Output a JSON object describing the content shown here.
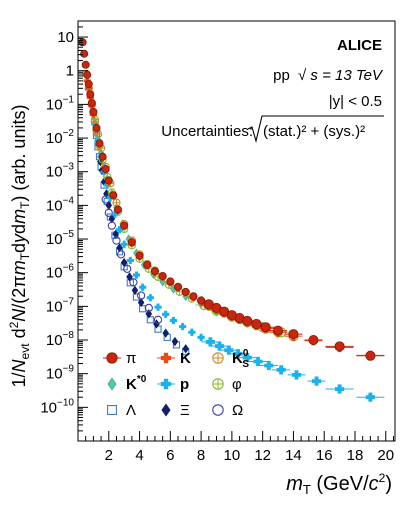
{
  "chart_data": {
    "type": "scatter",
    "title": "",
    "xlabel": "m_T (GeV/c^2)",
    "ylabel": "1/N_evt d^2N/(2πm_T dy dm_T) (arb. units)",
    "xlim": [
      0,
      20.6
    ],
    "ylim": [
      1e-11,
      30
    ],
    "yscale": "log",
    "grid": false,
    "legend_position": "bottom-left",
    "x_ticks": [
      2,
      4,
      6,
      8,
      10,
      12,
      14,
      16,
      18,
      20
    ],
    "y_ticks": [
      {
        "v": 10,
        "m": "10",
        "e": ""
      },
      {
        "v": 1,
        "m": "1",
        "e": ""
      },
      {
        "v": 0.1,
        "m": "10",
        "e": "−1"
      },
      {
        "v": 0.01,
        "m": "10",
        "e": "−2"
      },
      {
        "v": 0.001,
        "m": "10",
        "e": "−3"
      },
      {
        "v": 0.0001,
        "m": "10",
        "e": "−4"
      },
      {
        "v": 1e-05,
        "m": "10",
        "e": "−5"
      },
      {
        "v": 1e-06,
        "m": "10",
        "e": "−6"
      },
      {
        "v": 1e-07,
        "m": "10",
        "e": "−7"
      },
      {
        "v": 1e-08,
        "m": "10",
        "e": "−8"
      },
      {
        "v": 1e-09,
        "m": "10",
        "e": "−9"
      },
      {
        "v": 1e-10,
        "m": "10",
        "e": "−10"
      }
    ],
    "annotations": {
      "experiment": "ALICE",
      "system_prefix": "pp",
      "system_sqrt": "√",
      "system_energy": "s = 13 TeV",
      "rapidity": "|y| < 0.5",
      "uncertainties_label": "Uncertainties:",
      "uncertainties_formula": "(stat.)² + (sys.)²"
    },
    "series": [
      {
        "name": "π",
        "color": "#c8260f",
        "marker": "circle-filled",
        "stroke": "#7a1a0a",
        "x": [
          0.3,
          0.4,
          0.5,
          0.6,
          0.7,
          0.8,
          0.9,
          1.0,
          1.2,
          1.4,
          1.6,
          1.8,
          2.0,
          2.3,
          2.6,
          3.0,
          3.5,
          4.0,
          4.5,
          5.0,
          5.5,
          6.0,
          6.5,
          7.0,
          7.5,
          8.0,
          8.5,
          9.0,
          9.5,
          10.0,
          10.5,
          11.0,
          11.6,
          12.2,
          13.0,
          14.0,
          15.3,
          17.0,
          19.0
        ],
        "y": [
          7.0,
          3.2,
          1.5,
          0.75,
          0.4,
          0.2,
          0.11,
          0.06,
          0.02,
          0.007,
          0.0028,
          0.0012,
          0.00055,
          0.0002,
          7.5e-05,
          2.5e-05,
          8e-06,
          3.2e-06,
          1.7e-06,
          1.1e-06,
          8e-07,
          5.5e-07,
          3.8e-07,
          2.7e-07,
          2e-07,
          1.5e-07,
          1.15e-07,
          9e-08,
          7e-08,
          5.5e-08,
          4.5e-08,
          3.7e-08,
          3e-08,
          2.4e-08,
          1.9e-08,
          1.5e-08,
          1e-08,
          6.5e-09,
          3.4e-09
        ]
      },
      {
        "name": "K",
        "color": "#e84e14",
        "marker": "cross-filled",
        "stroke": "#a03208",
        "x": [
          0.6,
          0.7,
          0.8,
          0.9,
          1.0,
          1.2,
          1.4,
          1.6,
          1.8,
          2.0,
          2.3,
          2.6,
          3.0,
          3.5,
          4.0,
          4.5,
          5.0,
          5.5,
          6.0,
          6.5,
          7.0,
          7.5,
          8.0,
          8.5,
          9.0,
          9.5,
          10.0,
          10.5,
          11.0,
          11.6,
          12.2,
          13.0,
          14.0,
          15.3,
          17.0,
          19.0
        ],
        "y": [
          0.5,
          0.3,
          0.16,
          0.09,
          0.05,
          0.018,
          0.0065,
          0.0026,
          0.0011,
          0.0005,
          0.00019,
          7e-05,
          2.4e-05,
          7.5e-06,
          3e-06,
          1.6e-06,
          1e-06,
          7.2e-07,
          5e-07,
          3.5e-07,
          2.5e-07,
          1.85e-07,
          1.4e-07,
          1.05e-07,
          8.2e-08,
          6.4e-08,
          5.1e-08,
          4.1e-08,
          3.4e-08,
          2.7e-08,
          2.2e-08,
          1.7e-08,
          1.3e-08,
          9.5e-09,
          6e-09,
          3.5e-09
        ]
      },
      {
        "name": "K⁰_S",
        "color": "#e09a2e",
        "marker": "circle-cross-open",
        "stroke": "#d08a20",
        "x": [
          0.55,
          0.7,
          0.9,
          1.1,
          1.3,
          1.5,
          1.8,
          2.1,
          2.5,
          3.0,
          3.5,
          4.0,
          4.5,
          5.0,
          5.5,
          6.0,
          6.5,
          7.0,
          7.5,
          8.0,
          8.5,
          9.0,
          9.5,
          10.0,
          10.5,
          11.0,
          11.6,
          12.2,
          13.0,
          14.0
        ],
        "y": [
          0.8,
          0.3,
          0.1,
          0.035,
          0.013,
          0.005,
          0.0014,
          0.00045,
          0.00012,
          2.8e-05,
          9e-06,
          3.5e-06,
          1.8e-06,
          1.15e-06,
          7.6e-07,
          5.3e-07,
          3.7e-07,
          2.6e-07,
          1.9e-07,
          1.45e-07,
          1.1e-07,
          8.5e-08,
          6.7e-08,
          5.3e-08,
          4.3e-08,
          3.5e-08,
          2.8e-08,
          2.2e-08,
          1.75e-08,
          1.3e-08
        ]
      },
      {
        "name": "K*⁰",
        "color": "#4ec9b0",
        "marker": "diamond-filled",
        "stroke": "#2fa38e",
        "x": [
          1.0,
          1.1,
          1.2,
          1.3,
          1.5,
          1.7,
          1.9,
          2.2,
          2.5,
          2.9,
          3.3,
          3.8,
          4.3,
          4.9,
          5.5,
          6.2,
          7.0,
          8.0,
          9.0,
          10.0,
          11.0,
          12.0,
          13.0
        ],
        "y": [
          0.05,
          0.028,
          0.016,
          0.009,
          0.0035,
          0.0014,
          0.0006,
          0.00022,
          8.5e-05,
          2.8e-05,
          1e-05,
          3.8e-06,
          1.7e-06,
          9e-07,
          5.4e-07,
          3.3e-07,
          2e-07,
          1.2e-07,
          7.5e-08,
          5e-08,
          3.4e-08,
          2.4e-08,
          1.7e-08
        ]
      },
      {
        "name": "p",
        "color": "#19b2ee",
        "marker": "cross-filled",
        "stroke": "#0f8fc4",
        "x": [
          1.0,
          1.1,
          1.2,
          1.3,
          1.5,
          1.7,
          1.9,
          2.1,
          2.4,
          2.7,
          3.0,
          3.4,
          3.8,
          4.2,
          4.7,
          5.2,
          5.7,
          6.2,
          6.8,
          7.4,
          8.0,
          8.6,
          9.2,
          9.8,
          10.4,
          11.0,
          11.7,
          12.4,
          13.2,
          14.2,
          15.5,
          17.0,
          19.0
        ],
        "y": [
          0.05,
          0.026,
          0.014,
          0.008,
          0.0028,
          0.001,
          0.0004,
          0.00017,
          5.5e-05,
          1.9e-05,
          7e-06,
          2.3e-06,
          8.5e-07,
          3.7e-07,
          1.8e-07,
          9.5e-08,
          5.8e-08,
          3.8e-08,
          2.5e-08,
          1.7e-08,
          1.2e-08,
          8.8e-09,
          6.6e-09,
          5e-09,
          3.9e-09,
          3e-09,
          2.3e-09,
          1.75e-09,
          1.3e-09,
          9.2e-10,
          6e-10,
          3.5e-10,
          2e-10
        ]
      },
      {
        "name": "φ",
        "color": "#9ccc3a",
        "marker": "circle-cross-open",
        "stroke": "#86b82a",
        "x": [
          1.1,
          1.2,
          1.4,
          1.6,
          1.9,
          2.2,
          2.6,
          3.0,
          3.5,
          4.0,
          4.6,
          5.2,
          5.9,
          6.6,
          7.4,
          8.2,
          9.0,
          10.0,
          11.0,
          12.0,
          13.2
        ],
        "y": [
          0.03,
          0.017,
          0.006,
          0.0023,
          0.0007,
          0.00024,
          6.5e-05,
          2e-05,
          6.5e-06,
          2.6e-06,
          1.3e-06,
          7.5e-07,
          4.4e-07,
          2.7e-07,
          1.7e-07,
          1.1e-07,
          7.5e-08,
          5e-08,
          3.4e-08,
          2.4e-08,
          1.7e-08
        ]
      },
      {
        "name": "Λ",
        "color": "#3f7dc9",
        "marker": "square-open",
        "stroke": "#3f7dc9",
        "x": [
          1.2,
          1.3,
          1.4,
          1.5,
          1.7,
          1.9,
          2.1,
          2.4,
          2.7,
          3.0,
          3.4,
          3.8,
          4.2,
          4.7,
          5.2,
          5.8,
          6.4,
          7.0
        ],
        "y": [
          0.012,
          0.0055,
          0.0028,
          0.0014,
          0.0004,
          0.00013,
          4.5e-05,
          1.3e-05,
          4.2e-06,
          1.5e-06,
          5e-07,
          1.9e-07,
          8.5e-08,
          4e-08,
          2.1e-08,
          1.2e-08,
          7.2e-09,
          4.5e-09
        ]
      },
      {
        "name": "Ξ",
        "color": "#10206f",
        "marker": "diamond-filled",
        "stroke": "#0a1550",
        "x": [
          1.45,
          1.55,
          1.7,
          1.85,
          2.0,
          2.2,
          2.45,
          2.7,
          3.0,
          3.35,
          3.7,
          4.1,
          4.6,
          5.1,
          5.7,
          6.3,
          7.0
        ],
        "y": [
          0.002,
          0.0011,
          0.0005,
          0.00022,
          0.0001,
          4e-05,
          1.4e-05,
          5.5e-06,
          2e-06,
          7.5e-07,
          3e-07,
          1.3e-07,
          6e-08,
          3e-08,
          1.6e-08,
          9e-09,
          5.5e-09
        ]
      },
      {
        "name": "Ω",
        "color": "#3e3fa8",
        "marker": "circle-open",
        "stroke": "#3e3fa8",
        "x": [
          1.8,
          2.0,
          2.2,
          2.5,
          2.8,
          3.2,
          3.6,
          4.1,
          4.6,
          5.2
        ],
        "y": [
          0.00015,
          6e-05,
          2.5e-05,
          9e-06,
          3.5e-06,
          1.3e-06,
          5.2e-07,
          2.1e-07,
          9e-08,
          4e-08
        ]
      }
    ]
  }
}
